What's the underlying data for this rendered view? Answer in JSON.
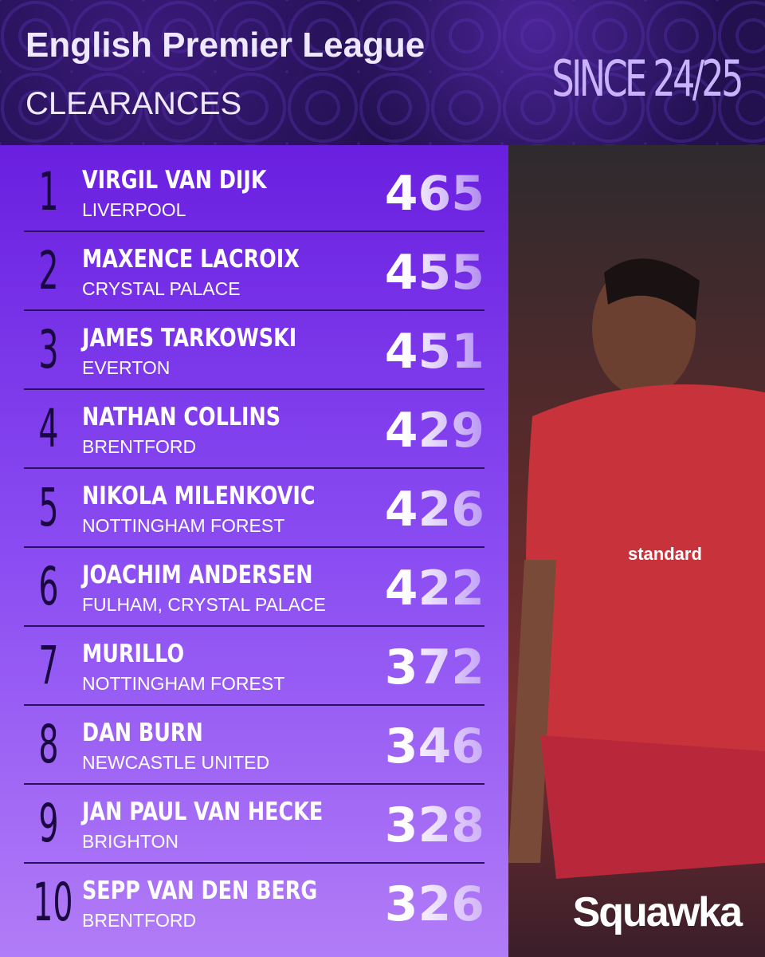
{
  "header": {
    "title": "English Premier League",
    "subtitle": "CLEARANCES",
    "period": "SINCE 24/25"
  },
  "table": {
    "rows": [
      {
        "rank": 1,
        "name": "VIRGIL VAN DIJK",
        "club": "LIVERPOOL",
        "value": 465
      },
      {
        "rank": 2,
        "name": "MAXENCE LACROIX",
        "club": "CRYSTAL PALACE",
        "value": 455
      },
      {
        "rank": 3,
        "name": "JAMES TARKOWSKI",
        "club": "EVERTON",
        "value": 451
      },
      {
        "rank": 4,
        "name": "NATHAN COLLINS",
        "club": "BRENTFORD",
        "value": 429
      },
      {
        "rank": 5,
        "name": "NIKOLA MILENKOVIC",
        "club": "NOTTINGHAM FOREST",
        "value": 426
      },
      {
        "rank": 6,
        "name": "JOACHIM ANDERSEN",
        "club": "FULHAM, CRYSTAL PALACE",
        "value": 422
      },
      {
        "rank": 7,
        "name": "MURILLO",
        "club": "NOTTINGHAM FOREST",
        "value": 372
      },
      {
        "rank": 8,
        "name": "DAN BURN",
        "club": "NEWCASTLE UNITED",
        "value": 346
      },
      {
        "rank": 9,
        "name": "JAN PAUL VAN HECKE",
        "club": "BRIGHTON",
        "value": 328
      },
      {
        "rank": 10,
        "name": "SEPP VAN DEN BERG",
        "club": "BRENTFORD",
        "value": 326
      }
    ]
  },
  "brand": "Squawka"
}
